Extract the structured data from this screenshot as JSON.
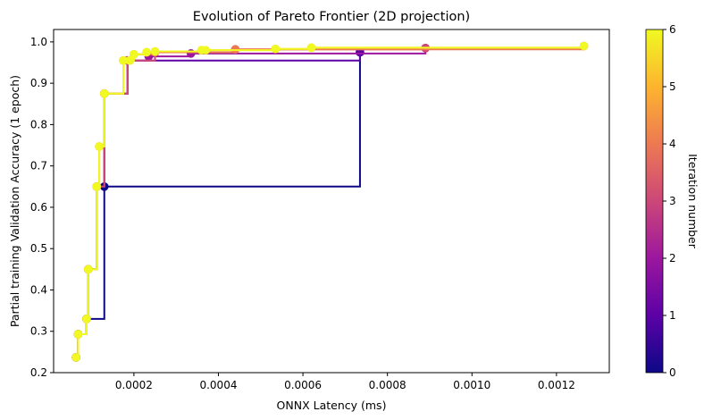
{
  "chart_data": {
    "type": "line",
    "title": "Evolution of Pareto Frontier (2D projection)",
    "xlabel": "ONNX Latency (ms)",
    "ylabel": "Partial training Validation Accuracy (1 epoch)",
    "xlim": [
      1e-05,
      0.001325
    ],
    "ylim": [
      0.2,
      1.03
    ],
    "xticks": [
      0.0002,
      0.0004,
      0.0006,
      0.0008,
      0.001,
      0.0012
    ],
    "xtick_labels": [
      "0.0002",
      "0.0004",
      "0.0006",
      "0.0008",
      "0.0010",
      "0.0012"
    ],
    "yticks": [
      0.2,
      0.3,
      0.4,
      0.5,
      0.6,
      0.7,
      0.8,
      0.9,
      1.0
    ],
    "ytick_labels": [
      "0.2",
      "0.3",
      "0.4",
      "0.5",
      "0.6",
      "0.7",
      "0.8",
      "0.9",
      "1.0"
    ],
    "grid": false,
    "plot_style": "step-post frontier with circle markers, colored by iteration",
    "colorbar": {
      "label": "Iteration number",
      "min": 0,
      "max": 6,
      "ticks": [
        0,
        1,
        2,
        3,
        4,
        5,
        6
      ],
      "tick_labels": [
        "0",
        "1",
        "2",
        "3",
        "4",
        "5",
        "6"
      ],
      "colormap": "plasma",
      "stops": [
        "#0d0887",
        "#5c01a6",
        "#9c179e",
        "#cc4778",
        "#ed7953",
        "#fdb42f",
        "#f0f921"
      ]
    },
    "series": [
      {
        "iteration": 0,
        "color": "#0d0887",
        "x": [
          6.3e-05,
          6.8e-05,
          8.8e-05,
          0.00013,
          0.000735
        ],
        "y": [
          0.237,
          0.293,
          0.33,
          0.65,
          0.975
        ]
      },
      {
        "iteration": 1,
        "color": "#5c01a6",
        "x": [
          6.3e-05,
          6.8e-05,
          8.8e-05,
          9.2e-05,
          0.000112,
          0.00013,
          0.000185,
          0.000735
        ],
        "y": [
          0.237,
          0.293,
          0.33,
          0.45,
          0.65,
          0.875,
          0.955,
          0.975
        ]
      },
      {
        "iteration": 2,
        "color": "#9c179e",
        "x": [
          6.3e-05,
          6.8e-05,
          8.8e-05,
          9.2e-05,
          0.000112,
          0.00013,
          0.000185,
          0.000235,
          0.000335,
          0.00089
        ],
        "y": [
          0.237,
          0.293,
          0.33,
          0.45,
          0.65,
          0.875,
          0.955,
          0.965,
          0.972,
          0.985
        ]
      },
      {
        "iteration": 3,
        "color": "#cc4778",
        "x": [
          6.3e-05,
          6.8e-05,
          8.8e-05,
          9.2e-05,
          0.000112,
          0.00013,
          0.000185,
          0.00025,
          0.00044,
          0.00089
        ],
        "y": [
          0.237,
          0.293,
          0.33,
          0.45,
          0.65,
          0.875,
          0.955,
          0.975,
          0.982,
          0.985
        ]
      },
      {
        "iteration": 4,
        "color": "#ed7953",
        "x": [
          6.3e-05,
          6.8e-05,
          8.8e-05,
          9.2e-05,
          0.000112,
          0.000118,
          0.00013,
          0.000175,
          0.00019,
          0.0002,
          0.00025,
          0.00044,
          0.001265
        ],
        "y": [
          0.237,
          0.293,
          0.33,
          0.45,
          0.65,
          0.747,
          0.875,
          0.955,
          0.955,
          0.97,
          0.975,
          0.982,
          0.99
        ]
      },
      {
        "iteration": 5,
        "color": "#fdb42f",
        "x": [
          6.3e-05,
          6.8e-05,
          8.8e-05,
          9.2e-05,
          0.000112,
          0.000118,
          0.00013,
          0.000175,
          0.00019,
          0.0002,
          0.00023,
          0.00025,
          0.00036,
          0.000535,
          0.00062,
          0.001265
        ],
        "y": [
          0.237,
          0.293,
          0.33,
          0.45,
          0.65,
          0.747,
          0.875,
          0.955,
          0.955,
          0.97,
          0.975,
          0.977,
          0.98,
          0.983,
          0.986,
          0.99
        ]
      },
      {
        "iteration": 6,
        "color": "#f0f921",
        "x": [
          6.3e-05,
          6.8e-05,
          8.8e-05,
          9.2e-05,
          0.000112,
          0.000118,
          0.00013,
          0.000175,
          0.00019,
          0.0002,
          0.00023,
          0.00025,
          0.00036,
          0.00037,
          0.000535,
          0.00062,
          0.001265
        ],
        "y": [
          0.237,
          0.293,
          0.33,
          0.45,
          0.65,
          0.747,
          0.875,
          0.955,
          0.955,
          0.97,
          0.975,
          0.977,
          0.98,
          0.98,
          0.983,
          0.986,
          0.99
        ]
      }
    ]
  }
}
